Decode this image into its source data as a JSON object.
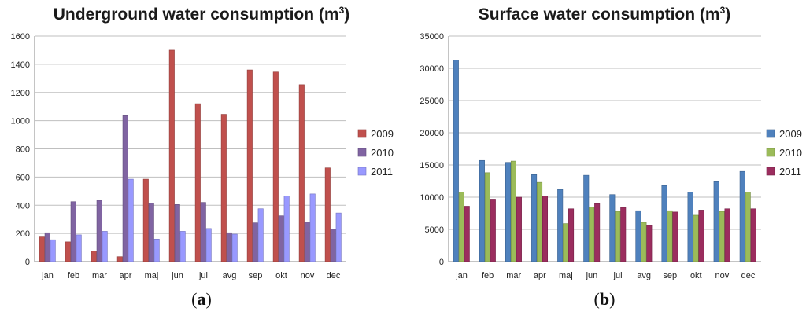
{
  "chart_data": [
    {
      "type": "bar",
      "title": "Underground water consumption (m",
      "title_superscript": "3",
      "title_suffix": ")",
      "panel_label": "a",
      "categories": [
        "jan",
        "feb",
        "mar",
        "apr",
        "maj",
        "jun",
        "jul",
        "avg",
        "sep",
        "okt",
        "nov",
        "dec"
      ],
      "series": [
        {
          "name": "2009",
          "color": "#c0504d",
          "values": [
            175,
            140,
            75,
            35,
            585,
            1500,
            1120,
            1045,
            1360,
            1345,
            1255,
            665
          ]
        },
        {
          "name": "2010",
          "color": "#8064a2",
          "values": [
            205,
            425,
            435,
            1035,
            415,
            405,
            420,
            205,
            275,
            325,
            280,
            230
          ]
        },
        {
          "name": "2011",
          "color": "#9999ff",
          "values": [
            155,
            190,
            215,
            585,
            160,
            215,
            235,
            195,
            375,
            465,
            480,
            345
          ]
        }
      ],
      "ylim": [
        0,
        1600
      ],
      "yticks": [
        0,
        200,
        400,
        600,
        800,
        1000,
        1200,
        1400,
        1600
      ],
      "xlabel": "",
      "ylabel": "",
      "grid": true,
      "legend": "right"
    },
    {
      "type": "bar",
      "title": "Surface water consumption (m",
      "title_superscript": "3",
      "title_suffix": ")",
      "panel_label": "b",
      "categories": [
        "jan",
        "feb",
        "mar",
        "apr",
        "maj",
        "jun",
        "jul",
        "avg",
        "sep",
        "okt",
        "nov",
        "dec"
      ],
      "series": [
        {
          "name": "2009",
          "color": "#4f81bd",
          "values": [
            31300,
            15700,
            15400,
            13500,
            11200,
            13400,
            10400,
            7900,
            11800,
            10800,
            12400,
            14000
          ]
        },
        {
          "name": "2010",
          "color": "#9bbb59",
          "values": [
            10800,
            13800,
            15600,
            12300,
            5900,
            8500,
            7800,
            6100,
            7900,
            7200,
            7800,
            10800
          ]
        },
        {
          "name": "2011",
          "color": "#9b2d5e",
          "values": [
            8600,
            9700,
            10000,
            10200,
            8200,
            9000,
            8400,
            5600,
            7700,
            8000,
            8200,
            8200
          ]
        }
      ],
      "ylim": [
        0,
        35000
      ],
      "yticks": [
        0,
        5000,
        10000,
        15000,
        20000,
        25000,
        30000,
        35000
      ],
      "xlabel": "",
      "ylabel": "",
      "grid": true,
      "legend": "right"
    }
  ]
}
